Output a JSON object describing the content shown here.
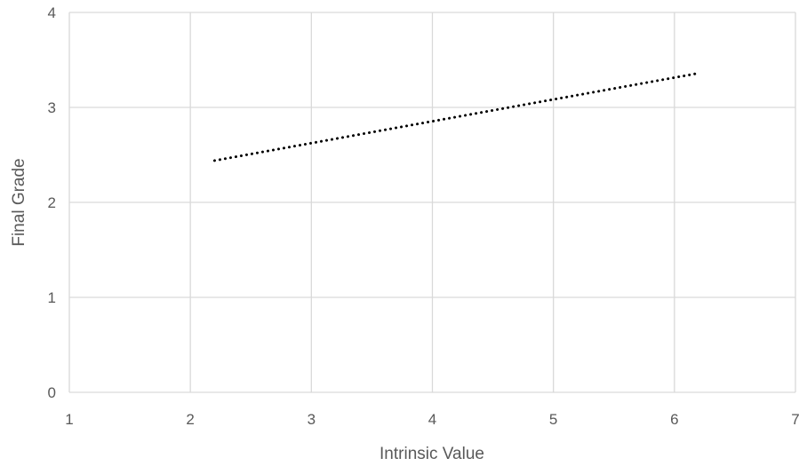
{
  "chart_data": {
    "type": "line",
    "title": "",
    "xlabel": "Intrinsic Value",
    "ylabel": "Final Grade",
    "xlim": [
      1,
      7
    ],
    "ylim": [
      0,
      4
    ],
    "x_ticks": [
      "1",
      "2",
      "3",
      "4",
      "5",
      "6",
      "7"
    ],
    "y_ticks": [
      "0",
      "1",
      "2",
      "3",
      "4"
    ],
    "grid": true,
    "legend": "none",
    "series": [
      {
        "style": "dotted",
        "color": "#000000",
        "x": [
          2.2,
          6.2
        ],
        "y": [
          2.44,
          3.36
        ]
      }
    ]
  }
}
